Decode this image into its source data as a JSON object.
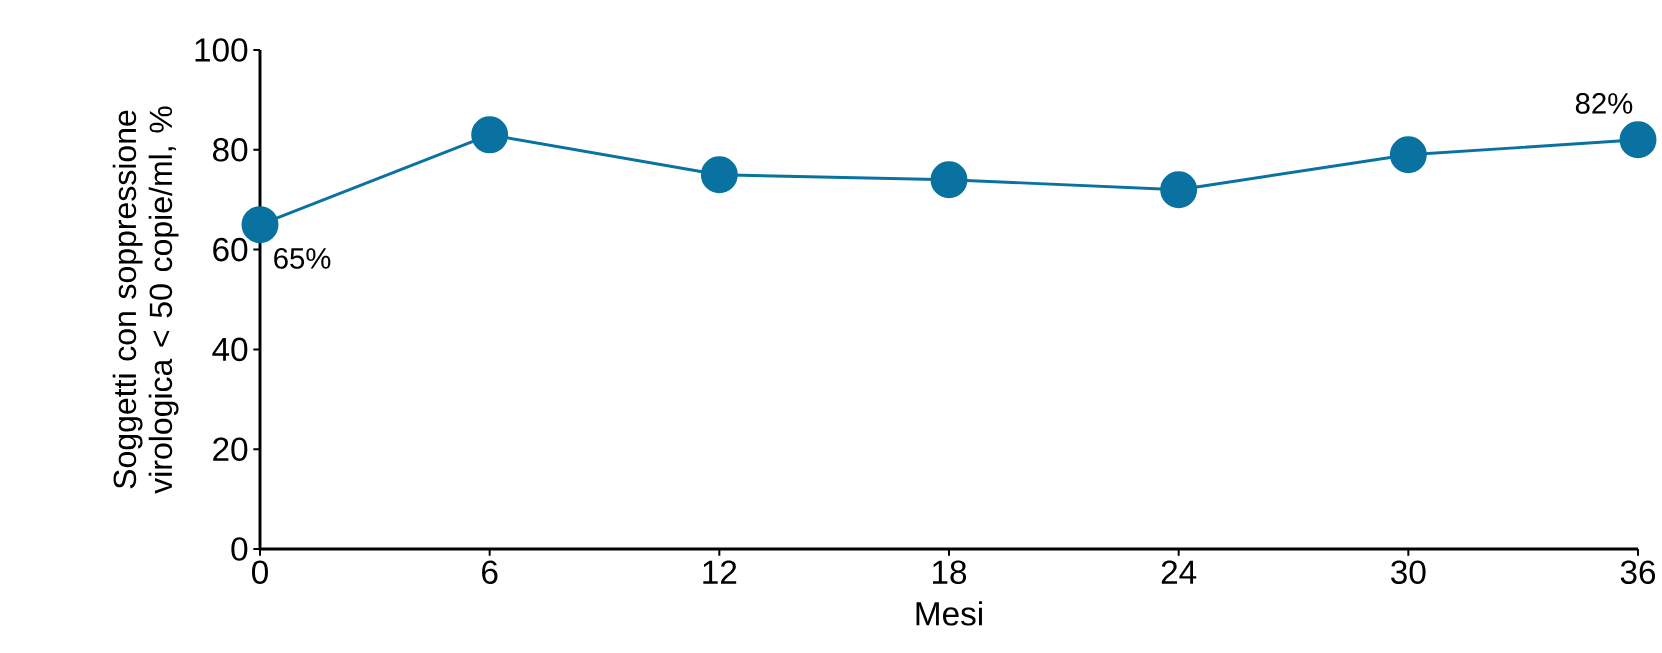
{
  "chart_data": {
    "type": "line",
    "xlabel": "Mesi",
    "ylabel": "Soggetti con soppressione virologica < 50 copie/ml, %",
    "x": [
      0,
      6,
      12,
      18,
      24,
      30,
      36
    ],
    "series": [
      {
        "color": "#0a72a0",
        "values": [
          65,
          83,
          75,
          74,
          72,
          79,
          82
        ],
        "value_labels": [
          "65%",
          null,
          null,
          null,
          null,
          null,
          "82%"
        ]
      }
    ],
    "xlim": [
      0,
      36
    ],
    "xticks": [
      0,
      6,
      12,
      18,
      24,
      30,
      36
    ],
    "ylim": [
      0,
      100
    ],
    "yticks": [
      0,
      20,
      40,
      60,
      80,
      100
    ],
    "marker": "circle",
    "line_style": "solid",
    "grid": false
  }
}
